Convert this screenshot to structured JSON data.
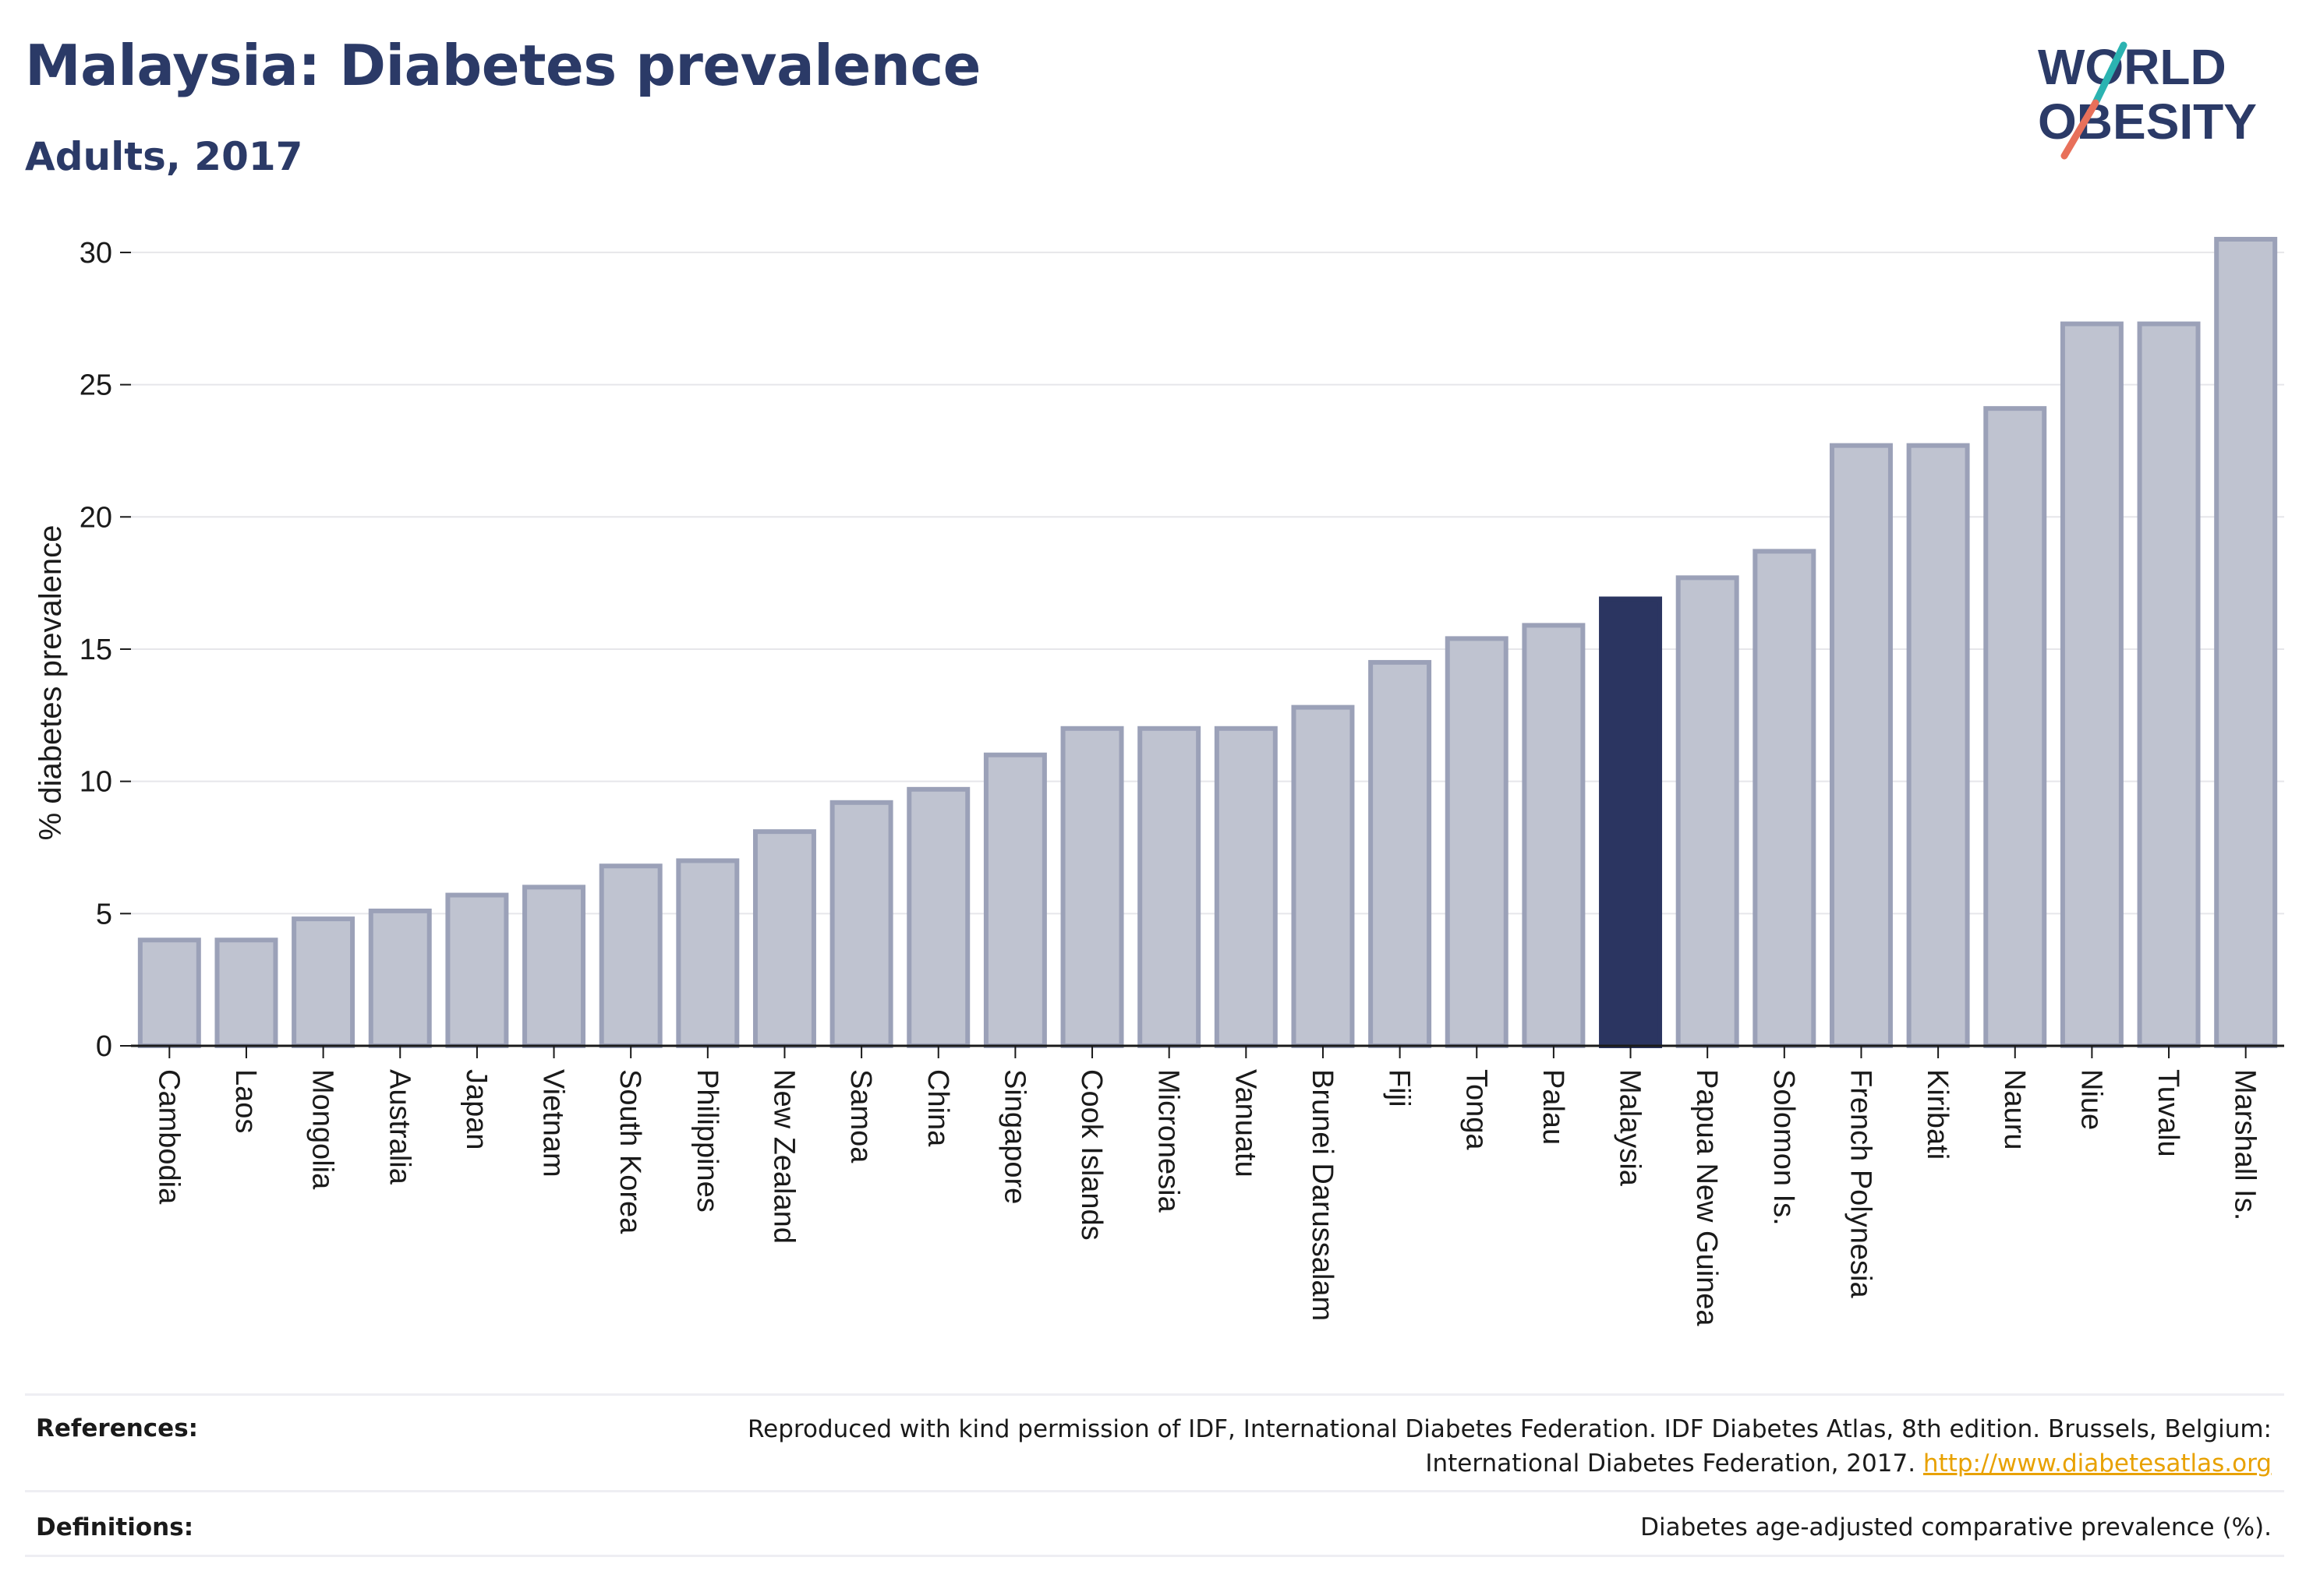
{
  "title": "Malaysia: Diabetes prevalence",
  "subtitle": "Adults, 2017",
  "logo": {
    "line1": "WORLD",
    "line2": "OBESITY",
    "accent_teal": "#2bb3b1",
    "accent_coral": "#e8705a",
    "text_color": "#2b3a67"
  },
  "colors": {
    "bar": "#bfc3d0",
    "bar_border": "#9ba1b8",
    "highlight": "#2b3561",
    "axis": "#1a1a1a",
    "grid": "#e6e6ea"
  },
  "chart_data": {
    "type": "bar",
    "ylabel": "% diabetes prevalence",
    "xlabel": "",
    "ylim": [
      0,
      31
    ],
    "yticks": [
      0,
      5,
      10,
      15,
      20,
      25,
      30
    ],
    "grid": true,
    "highlight": "Malaysia",
    "categories": [
      "Cambodia",
      "Laos",
      "Mongolia",
      "Australia",
      "Japan",
      "Vietnam",
      "South Korea",
      "Philippines",
      "New Zealand",
      "Samoa",
      "China",
      "Singapore",
      "Cook Islands",
      "Micronesia",
      "Vanuatu",
      "Brunei Darussalam",
      "Fiji",
      "Tonga",
      "Palau",
      "Malaysia",
      "Papua New Guinea",
      "Solomon Is.",
      "French Polynesia",
      "Kiribati",
      "Nauru",
      "Niue",
      "Tuvalu",
      "Marshall Is."
    ],
    "values": [
      4.0,
      4.0,
      4.8,
      5.1,
      5.7,
      6.0,
      6.8,
      7.0,
      8.1,
      9.2,
      9.7,
      11.0,
      12.0,
      12.0,
      12.0,
      12.8,
      14.5,
      15.4,
      15.9,
      16.9,
      17.7,
      18.7,
      22.7,
      22.7,
      24.1,
      27.3,
      27.3,
      30.5
    ]
  },
  "footer": {
    "references_label": "References:",
    "references_line1": "Reproduced with kind permission of IDF, International Diabetes Federation. IDF Diabetes Atlas, 8th edition. Brussels, Belgium:",
    "references_line2": "International Diabetes Federation, 2017.",
    "references_link": "http://www.diabetesatlas.org",
    "definitions_label": "Definitions:",
    "definitions_text": "Diabetes age-adjusted comparative prevalence (%)."
  }
}
